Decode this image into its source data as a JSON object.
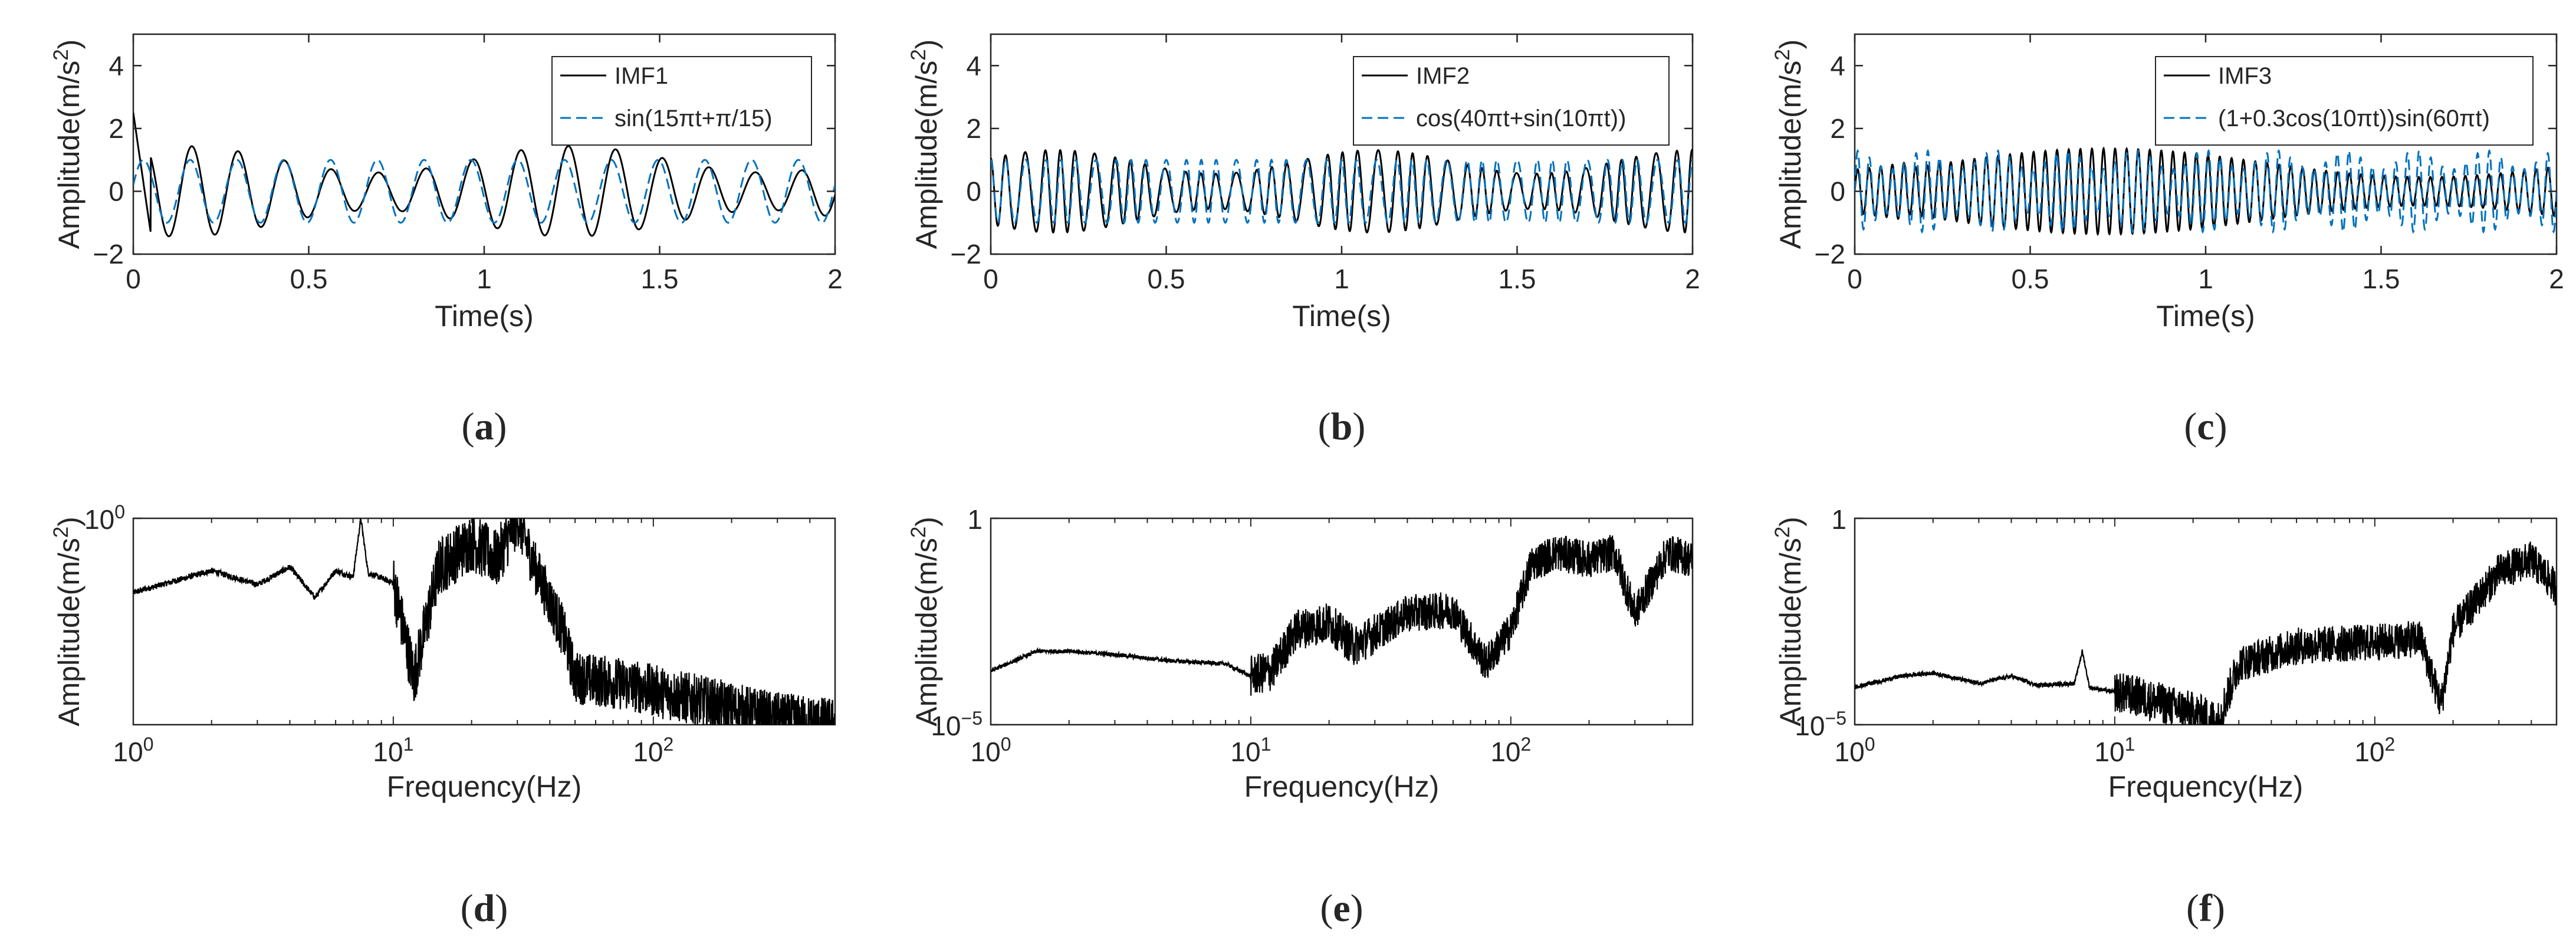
{
  "colors": {
    "imf": "#000000",
    "reference": "#0072BD",
    "axis": "#262626",
    "background": "#ffffff"
  },
  "chart_data": [
    {
      "type": "line",
      "panel_label": "a",
      "label_prefix": "(",
      "label_suffix": ")",
      "xlabel": "Time(s)",
      "ylabel": "Amplitude(m/s",
      "ylabel_sup": "2",
      "ylabel_tail": ")",
      "xlim": [
        0,
        2
      ],
      "ylim": [
        -2,
        5
      ],
      "xticks": [
        0,
        0.5,
        1,
        1.5,
        2
      ],
      "xtick_labels": [
        "0",
        "0.5",
        "1",
        "1.5",
        "2"
      ],
      "yticks": [
        -2,
        0,
        2,
        4
      ],
      "ytick_labels": [
        "−2",
        "0",
        "2",
        "4"
      ],
      "grid": false,
      "legend_position": "top-right",
      "series": [
        {
          "name": "IMF1",
          "style": "solid",
          "color": "#000000",
          "description": "approx. 7.5 Hz oscillation, amplitude ~1.1 to 1.6, starts near 2.5 at t=0",
          "frequency_hz": 7.5,
          "amplitude": 1.2,
          "initial_value": 2.5
        },
        {
          "name": "sin(15πt+π/15)",
          "style": "dashed",
          "color": "#0072BD",
          "formula": "sin(15*pi*t + pi/15)",
          "frequency_hz": 7.5,
          "amplitude": 1.0
        }
      ]
    },
    {
      "type": "line",
      "panel_label": "b",
      "label_prefix": "(",
      "label_suffix": ")",
      "xlabel": "Time(s)",
      "ylabel": "Amplitude(m/s",
      "ylabel_sup": "2",
      "ylabel_tail": ")",
      "xlim": [
        0,
        2
      ],
      "ylim": [
        -2,
        5
      ],
      "xticks": [
        0,
        0.5,
        1,
        1.5,
        2
      ],
      "xtick_labels": [
        "0",
        "0.5",
        "1",
        "1.5",
        "2"
      ],
      "yticks": [
        -2,
        0,
        2,
        4
      ],
      "ytick_labels": [
        "−2",
        "0",
        "2",
        "4"
      ],
      "grid": false,
      "legend_position": "top-right",
      "series": [
        {
          "name": "IMF2",
          "style": "solid",
          "color": "#000000",
          "frequency_hz": 20,
          "amplitude": 1.25
        },
        {
          "name": "cos(40πt+sin(10πt))",
          "style": "dashed",
          "color": "#0072BD",
          "formula": "cos(40*pi*t + sin(10*pi*t))",
          "frequency_hz": 20,
          "amplitude": 1.0
        }
      ]
    },
    {
      "type": "line",
      "panel_label": "c",
      "label_prefix": "(",
      "label_suffix": ")",
      "xlabel": "Time(s)",
      "ylabel": "Amplitude(m/s",
      "ylabel_sup": "2",
      "ylabel_tail": ")",
      "xlim": [
        0,
        2
      ],
      "ylim": [
        -2,
        5
      ],
      "xticks": [
        0,
        0.5,
        1,
        1.5,
        2
      ],
      "xtick_labels": [
        "0",
        "0.5",
        "1",
        "1.5",
        "2"
      ],
      "yticks": [
        -2,
        0,
        2,
        4
      ],
      "ytick_labels": [
        "−2",
        "0",
        "2",
        "4"
      ],
      "grid": false,
      "legend_position": "top-right",
      "series": [
        {
          "name": "IMF3",
          "style": "solid",
          "color": "#000000",
          "frequency_hz": 30,
          "amplitude": 1.3
        },
        {
          "name": "(1+0.3cos(10πt))sin(60πt)",
          "style": "dashed",
          "color": "#0072BD",
          "formula": "(1 + 0.3*cos(10*pi*t)) * sin(60*pi*t)",
          "frequency_hz": 30,
          "amplitude": 1.0
        }
      ]
    },
    {
      "type": "line",
      "panel_label": "d",
      "label_prefix": "(",
      "label_suffix": ")",
      "scale": "loglog",
      "xlabel": "Frequency(Hz)",
      "ylabel": "Amplitude(m/s",
      "ylabel_sup": "2",
      "ylabel_tail": ")",
      "xlim": [
        1,
        500
      ],
      "ylim_log10": [
        -3.5,
        0
      ],
      "xticks": [
        1,
        10,
        100
      ],
      "xtick_base": "10",
      "xtick_exponents": [
        "0",
        "1",
        "2"
      ],
      "ytick_log10": [
        0
      ],
      "ytick_base": "10",
      "ytick_exponents": [
        "0"
      ],
      "grid": false,
      "series": [
        {
          "name": "",
          "style": "solid",
          "color": "#000000",
          "description": "peaks near 7.5 Hz and 30 Hz (~1), decays above ~45 Hz",
          "points": [
            [
              1,
              0.055
            ],
            [
              2,
              0.13
            ],
            [
              3,
              0.075
            ],
            [
              4,
              0.15
            ],
            [
              5,
              0.045
            ],
            [
              6,
              0.13
            ],
            [
              7,
              0.1
            ],
            [
              7.5,
              1.0
            ],
            [
              8,
              0.12
            ],
            [
              10,
              0.08
            ],
            [
              12,
              0.002
            ],
            [
              15,
              0.15
            ],
            [
              20,
              0.4
            ],
            [
              25,
              0.2
            ],
            [
              30,
              1.0
            ],
            [
              35,
              0.15
            ],
            [
              45,
              0.012
            ],
            [
              50,
              0.002
            ],
            [
              80,
              0.0015
            ],
            [
              150,
              0.0008
            ],
            [
              300,
              0.0004
            ],
            [
              500,
              0.00032
            ]
          ]
        }
      ]
    },
    {
      "type": "line",
      "panel_label": "e",
      "label_prefix": "(",
      "label_suffix": ")",
      "scale": "loglog",
      "xlabel": "Frequency(Hz)",
      "ylabel": "Amplitude(m/s",
      "ylabel_sup": "2",
      "ylabel_tail": ")",
      "xlim": [
        1,
        500
      ],
      "ylim_log10": [
        -5,
        0
      ],
      "xticks": [
        1,
        10,
        100
      ],
      "xtick_base": "10",
      "xtick_exponents": [
        "0",
        "1",
        "2"
      ],
      "ytick_log10": [
        -5,
        0
      ],
      "ytick_labels_plain": [
        "",
        "1"
      ],
      "ytick_base": "10",
      "ytick_exponents": [
        "−5",
        ""
      ],
      "grid": false,
      "series": [
        {
          "name": "",
          "style": "solid",
          "color": "#000000",
          "description": "broad rise toward a plateau near 100-300 Hz (~0.1)",
          "points": [
            [
              1,
              0.0002
            ],
            [
              1.5,
              0.0006
            ],
            [
              2,
              0.0006
            ],
            [
              3,
              0.0005
            ],
            [
              5,
              0.00035
            ],
            [
              8,
              0.0003
            ],
            [
              10,
              0.00015
            ],
            [
              12,
              0.0002
            ],
            [
              15,
              0.002
            ],
            [
              20,
              0.003
            ],
            [
              25,
              0.0008
            ],
            [
              40,
              0.005
            ],
            [
              60,
              0.006
            ],
            [
              80,
              0.0003
            ],
            [
              100,
              0.002
            ],
            [
              120,
              0.08
            ],
            [
              150,
              0.15
            ],
            [
              200,
              0.1
            ],
            [
              250,
              0.15
            ],
            [
              300,
              0.005
            ],
            [
              400,
              0.15
            ],
            [
              500,
              0.1
            ]
          ]
        }
      ]
    },
    {
      "type": "line",
      "panel_label": "f",
      "label_prefix": "(",
      "label_suffix": ")",
      "scale": "loglog",
      "xlabel": "Frequency(Hz)",
      "ylabel": "Amplitude(m/s",
      "ylabel_sup": "2",
      "ylabel_tail": ")",
      "xlim": [
        1,
        500
      ],
      "ylim_log10": [
        -5,
        0
      ],
      "xticks": [
        1,
        10,
        100
      ],
      "xtick_base": "10",
      "xtick_exponents": [
        "0",
        "1",
        "2"
      ],
      "ytick_log10": [
        -5,
        0
      ],
      "ytick_labels_plain": [
        "",
        "1"
      ],
      "ytick_base": "10",
      "ytick_exponents": [
        "−5",
        ""
      ],
      "grid": false,
      "series": [
        {
          "name": "",
          "style": "solid",
          "color": "#000000",
          "description": "small bump at 7.5 Hz, dip near 25 Hz, peak near 300 Hz (~0.1)",
          "points": [
            [
              1,
              8e-05
            ],
            [
              1.5,
              0.00015
            ],
            [
              2,
              0.00018
            ],
            [
              3,
              0.0001
            ],
            [
              4,
              0.00015
            ],
            [
              5,
              9e-05
            ],
            [
              7,
              0.0001
            ],
            [
              7.5,
              0.0006
            ],
            [
              8,
              8e-05
            ],
            [
              12,
              5e-05
            ],
            [
              20,
              2e-05
            ],
            [
              25,
              1.2e-05
            ],
            [
              30,
              0.0003
            ],
            [
              50,
              0.0008
            ],
            [
              100,
              0.001
            ],
            [
              150,
              0.0012
            ],
            [
              180,
              3e-05
            ],
            [
              200,
              0.002
            ],
            [
              300,
              0.05
            ],
            [
              400,
              0.1
            ],
            [
              500,
              0.02
            ]
          ]
        }
      ]
    }
  ]
}
